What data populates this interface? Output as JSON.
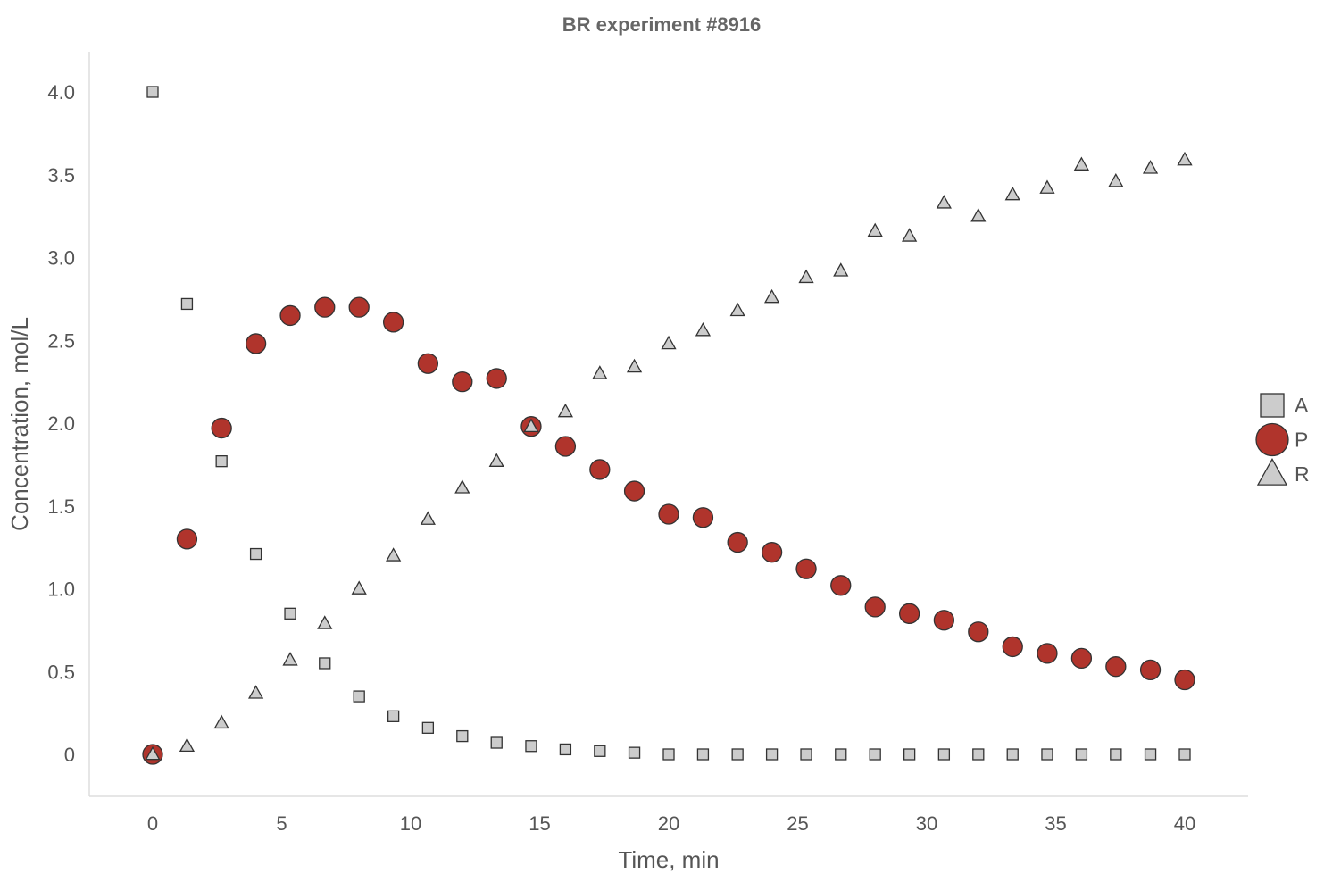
{
  "chart_data": {
    "type": "scatter",
    "title": "BR experiment #8916",
    "xlabel": "Time, min",
    "ylabel": "Concentration, mol/L",
    "xlim": [
      -2.5,
      42.5
    ],
    "ylim": [
      -0.25,
      4.25
    ],
    "xticks": [
      0,
      5,
      10,
      15,
      20,
      25,
      30,
      35,
      40
    ],
    "xtick_labels": [
      "0",
      "5",
      "10",
      "15",
      "20",
      "25",
      "30",
      "35",
      "40"
    ],
    "yticks": [
      0,
      0.5,
      1.0,
      1.5,
      2.0,
      2.5,
      3.0,
      3.5,
      4.0
    ],
    "ytick_labels": [
      "0",
      "0.5",
      "1.0",
      "1.5",
      "2.0",
      "2.5",
      "3.0",
      "3.5",
      "4.0"
    ],
    "grid": false,
    "legend_position": "right",
    "x": [
      0,
      1.33,
      2.67,
      4.0,
      5.33,
      6.67,
      8.0,
      9.33,
      10.67,
      12.0,
      13.33,
      14.67,
      16.0,
      17.33,
      18.67,
      20.0,
      21.33,
      22.67,
      24.0,
      25.33,
      26.67,
      28.0,
      29.33,
      30.67,
      32.0,
      33.33,
      34.67,
      36.0,
      37.33,
      38.67,
      40.0
    ],
    "series": [
      {
        "name": "A",
        "marker": "square",
        "color": "#cccccc",
        "values": [
          4.0,
          2.72,
          1.77,
          1.21,
          0.85,
          0.55,
          0.35,
          0.23,
          0.16,
          0.11,
          0.07,
          0.05,
          0.03,
          0.02,
          0.01,
          0.0,
          0.0,
          0.0,
          0.0,
          0.0,
          0.0,
          0.0,
          0.0,
          0.0,
          0.0,
          0.0,
          0.0,
          0.0,
          0.0,
          0.0,
          0.0
        ]
      },
      {
        "name": "P",
        "marker": "circle",
        "color": "#b0342c",
        "values": [
          0.0,
          1.3,
          1.97,
          2.48,
          2.65,
          2.7,
          2.7,
          2.61,
          2.36,
          2.25,
          2.27,
          1.98,
          1.86,
          1.72,
          1.59,
          1.45,
          1.43,
          1.28,
          1.22,
          1.12,
          1.02,
          0.89,
          0.85,
          0.81,
          0.74,
          0.65,
          0.61,
          0.58,
          0.53,
          0.51,
          0.45
        ]
      },
      {
        "name": "R",
        "marker": "triangle",
        "color": "#cccccc",
        "values": [
          0.0,
          0.05,
          0.19,
          0.37,
          0.57,
          0.79,
          1.0,
          1.2,
          1.42,
          1.61,
          1.77,
          1.98,
          2.07,
          2.3,
          2.34,
          2.48,
          2.56,
          2.68,
          2.76,
          2.88,
          2.92,
          3.16,
          3.13,
          3.33,
          3.25,
          3.38,
          3.42,
          3.56,
          3.46,
          3.54,
          3.59
        ]
      }
    ]
  },
  "colors": {
    "marker_edge": "#333333",
    "axis_line": "#dddddd"
  }
}
